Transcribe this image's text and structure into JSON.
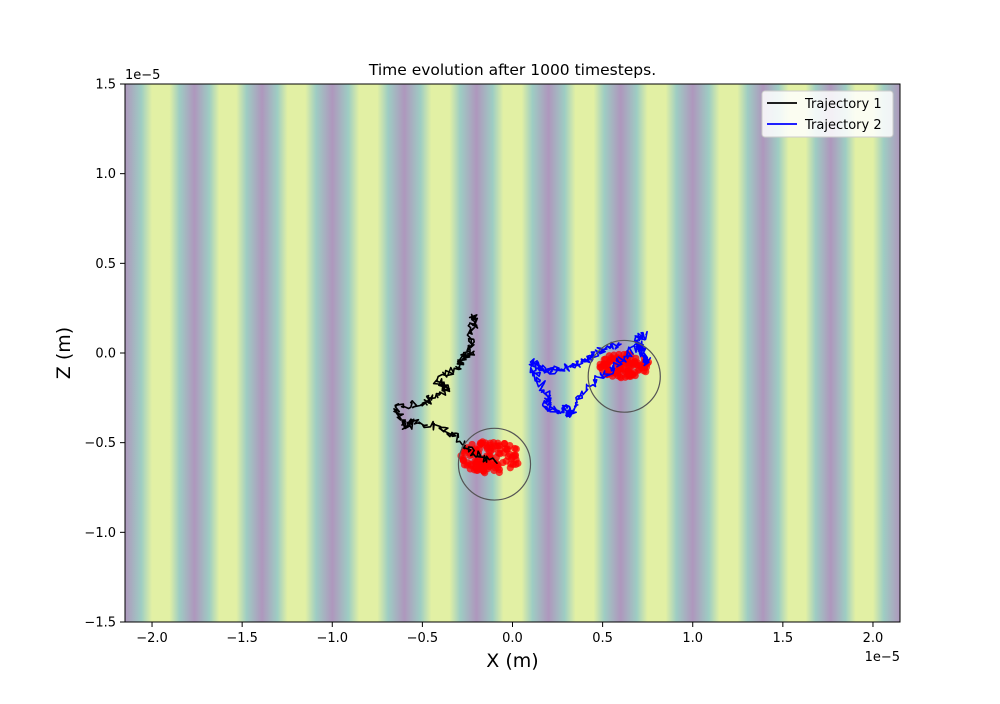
{
  "chart_data": {
    "type": "line",
    "title": "Time evolution after 1000 timesteps.",
    "xlabel": "X (m)",
    "ylabel": "Z (m)",
    "x_offset_label": "1e−5",
    "y_offset_label": "1e−5",
    "xlim": [
      -2.15,
      2.15
    ],
    "ylim": [
      -1.5,
      1.5
    ],
    "x_ticks": [
      -2.0,
      -1.5,
      -1.0,
      -0.5,
      0.0,
      0.5,
      1.0,
      1.5,
      2.0
    ],
    "x_tick_labels": [
      "−2.0",
      "−1.5",
      "−1.0",
      "−0.5",
      "0.0",
      "0.5",
      "1.0",
      "1.5",
      "2.0"
    ],
    "y_ticks": [
      -1.5,
      -1.0,
      -0.5,
      0.0,
      0.5,
      1.0,
      1.5
    ],
    "y_tick_labels": [
      "−1.5",
      "−1.0",
      "−0.5",
      "0.0",
      "0.5",
      "1.0",
      "1.5"
    ],
    "grid": false,
    "legend_position": "top-right",
    "background_field": {
      "description_colors": [
        "#ae97bd",
        "#9ecdc3",
        "#e2f0a4"
      ],
      "fringe_peaks_x": [
        -1.95,
        -1.58,
        -1.2,
        -0.8,
        -0.4,
        0.0,
        0.4,
        0.8,
        1.2,
        1.58,
        1.95
      ]
    },
    "series": [
      {
        "name": "Trajectory 1",
        "color": "#000000",
        "points": [
          [
            -0.1,
            -0.6
          ],
          [
            -0.22,
            -0.56
          ],
          [
            -0.3,
            -0.47
          ],
          [
            -0.4,
            -0.42
          ],
          [
            -0.55,
            -0.38
          ],
          [
            -0.6,
            -0.42
          ],
          [
            -0.65,
            -0.3
          ],
          [
            -0.5,
            -0.28
          ],
          [
            -0.45,
            -0.25
          ],
          [
            -0.35,
            -0.2
          ],
          [
            -0.42,
            -0.15
          ],
          [
            -0.3,
            -0.08
          ],
          [
            -0.28,
            -0.02
          ],
          [
            -0.22,
            0.0
          ],
          [
            -0.25,
            0.1
          ],
          [
            -0.2,
            0.18
          ],
          [
            -0.22,
            0.2
          ]
        ]
      },
      {
        "name": "Trajectory 2",
        "color": "#0000ff",
        "points": [
          [
            0.6,
            0.05
          ],
          [
            0.5,
            0.02
          ],
          [
            0.45,
            -0.02
          ],
          [
            0.38,
            -0.05
          ],
          [
            0.3,
            -0.08
          ],
          [
            0.22,
            -0.1
          ],
          [
            0.15,
            -0.08
          ],
          [
            0.1,
            -0.05
          ],
          [
            0.15,
            -0.15
          ],
          [
            0.2,
            -0.25
          ],
          [
            0.18,
            -0.3
          ],
          [
            0.25,
            -0.32
          ],
          [
            0.3,
            -0.3
          ],
          [
            0.32,
            -0.35
          ],
          [
            0.35,
            -0.28
          ],
          [
            0.45,
            -0.15
          ],
          [
            0.55,
            -0.1
          ],
          [
            0.62,
            -0.02
          ],
          [
            0.7,
            0.05
          ],
          [
            0.72,
            0.0
          ],
          [
            0.75,
            -0.05
          ],
          [
            0.68,
            0.08
          ],
          [
            0.74,
            0.1
          ]
        ]
      }
    ],
    "circles": [
      {
        "cx": -0.1,
        "cy": -0.62,
        "r": 0.2
      },
      {
        "cx": 0.62,
        "cy": -0.13,
        "r": 0.2
      }
    ],
    "scatter_groups": [
      {
        "color": "#ff0000",
        "center": [
          -0.12,
          -0.58
        ],
        "spread": [
          0.17,
          0.09
        ],
        "count": 120
      },
      {
        "color": "#ff0000",
        "center": [
          0.62,
          -0.07
        ],
        "spread": [
          0.14,
          0.07
        ],
        "count": 100
      }
    ]
  }
}
